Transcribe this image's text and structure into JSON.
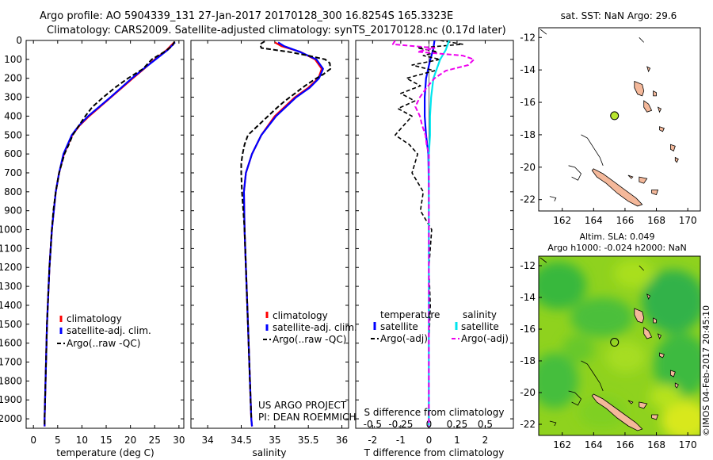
{
  "header": {
    "line1": "Argo profile: AO 5904339_131 27-Jan-2017 20170128_300 16.8254S 165.3323E",
    "line2": "Climatology: CARS2009. Satellite-adjusted climatology: synTS_20170128.nc (0.17d later)"
  },
  "colors": {
    "climatology": "#ff0000",
    "satellite": "#0000ff",
    "argo": "#000000",
    "satellite_s": "#00e5ee",
    "argo_s": "#ee00ee",
    "land": "#f4b89a",
    "float_marker": "#b8e62e"
  },
  "depth_axis": {
    "ticks": [
      0,
      100,
      200,
      300,
      400,
      500,
      600,
      700,
      800,
      900,
      1000,
      1100,
      1200,
      1300,
      1400,
      1500,
      1600,
      1700,
      1800,
      1900,
      2000
    ],
    "ylim": [
      2050,
      0
    ]
  },
  "chart_data": [
    {
      "type": "line",
      "id": "temperature",
      "xlabel": "temperature (deg C)",
      "xlim": [
        -1.5,
        31
      ],
      "xticks": [
        0,
        5,
        10,
        15,
        20,
        25,
        30
      ],
      "legend": [
        "climatology",
        "satellite-adj. clim.",
        "Argo(..raw -QC)"
      ],
      "series": [
        {
          "name": "climatology",
          "depth": [
            10,
            50,
            100,
            150,
            200,
            300,
            400,
            450,
            500,
            600,
            700,
            800,
            1000,
            1200,
            1500,
            1800,
            2000,
            2040
          ],
          "values": [
            29.0,
            27.5,
            25.0,
            22.8,
            20.5,
            16.0,
            11.5,
            9.5,
            8.0,
            6.3,
            5.3,
            4.6,
            3.8,
            3.3,
            2.8,
            2.5,
            2.3,
            2.3
          ]
        },
        {
          "name": "satellite-adj. clim.",
          "depth": [
            10,
            50,
            100,
            150,
            200,
            300,
            400,
            450,
            500,
            600,
            700,
            800,
            1000,
            1200,
            1500,
            1800,
            2000,
            2040
          ],
          "values": [
            29.2,
            27.7,
            25.2,
            22.7,
            20.3,
            15.9,
            11.3,
            9.4,
            7.9,
            6.2,
            5.3,
            4.6,
            3.8,
            3.3,
            2.8,
            2.5,
            2.3,
            2.3
          ]
        },
        {
          "name": "Argo(..raw -QC)",
          "depth": [
            5,
            30,
            60,
            100,
            150,
            200,
            250,
            300,
            350,
            400,
            450,
            500,
            550,
            600,
            700,
            800,
            900,
            1000,
            1200,
            1500,
            1800,
            2000,
            2040
          ],
          "values": [
            29.1,
            28.6,
            27.0,
            24.4,
            22.6,
            19.5,
            16.8,
            14.4,
            12.2,
            10.7,
            9.4,
            8.1,
            7.3,
            6.4,
            5.3,
            4.6,
            4.1,
            3.8,
            3.3,
            2.8,
            2.5,
            2.3,
            2.3
          ]
        }
      ]
    },
    {
      "type": "line",
      "id": "salinity",
      "xlabel": "salinity",
      "xlim": [
        33.75,
        36.1
      ],
      "xticks": [
        34,
        34.5,
        35,
        35.5,
        36
      ],
      "legend": [
        "climatology",
        "satellite-adj. clim.",
        "Argo(..raw -QC)"
      ],
      "series": [
        {
          "name": "climatology",
          "depth": [
            10,
            30,
            60,
            100,
            150,
            200,
            250,
            300,
            400,
            500,
            600,
            700,
            800,
            1000,
            1200,
            1500,
            1800,
            2000,
            2040
          ],
          "values": [
            35.0,
            35.1,
            35.38,
            35.6,
            35.7,
            35.65,
            35.5,
            35.3,
            35.0,
            34.8,
            34.66,
            34.57,
            34.54,
            34.55,
            34.57,
            34.6,
            34.63,
            34.65,
            34.66
          ]
        },
        {
          "name": "satellite-adj. clim.",
          "depth": [
            10,
            30,
            60,
            100,
            150,
            200,
            250,
            300,
            400,
            500,
            600,
            700,
            800,
            1000,
            1200,
            1500,
            1800,
            2000,
            2040
          ],
          "values": [
            35.05,
            35.14,
            35.37,
            35.62,
            35.72,
            35.66,
            35.52,
            35.32,
            35.02,
            34.8,
            34.66,
            34.57,
            34.54,
            34.55,
            34.57,
            34.6,
            34.63,
            34.65,
            34.66
          ]
        },
        {
          "name": "Argo(..raw -QC)",
          "depth": [
            5,
            20,
            40,
            60,
            80,
            100,
            120,
            150,
            180,
            200,
            240,
            280,
            320,
            360,
            400,
            450,
            500,
            550,
            600,
            650,
            700,
            800,
            900,
            1000,
            1200,
            1500,
            1800,
            2000
          ],
          "values": [
            34.85,
            34.78,
            34.8,
            35.2,
            35.5,
            35.75,
            35.82,
            35.83,
            35.72,
            35.62,
            35.45,
            35.3,
            35.15,
            35.02,
            34.9,
            34.75,
            34.6,
            34.55,
            34.52,
            34.5,
            34.5,
            34.51,
            34.53,
            34.55,
            34.57,
            34.6,
            34.63,
            34.65
          ]
        }
      ]
    },
    {
      "type": "line",
      "id": "difference",
      "xlabel": "T difference from climatology",
      "xlabel2": "S difference from climatology",
      "xlim": [
        -2.6,
        3.0
      ],
      "xticks": [
        -2,
        -1,
        0,
        1,
        2
      ],
      "s_ticks": [
        -0.5,
        -0.25,
        0,
        0.25,
        0.5
      ],
      "legend_title_t": "temperature",
      "legend_title_s": "salinity",
      "legend": [
        "satellite",
        "Argo(-adj)",
        "satellite",
        "Argo(-adj)"
      ],
      "series": [
        {
          "name": "satellite (T)",
          "depth": [
            0,
            50,
            100,
            200,
            300,
            400,
            500,
            600,
            800,
            1000,
            1500,
            2040
          ],
          "values": [
            0.2,
            0.15,
            0.05,
            -0.1,
            -0.15,
            -0.15,
            -0.1,
            -0.02,
            0,
            0,
            0,
            0
          ]
        },
        {
          "name": "Argo(-adj) (T)",
          "depth": [
            0,
            20,
            40,
            60,
            80,
            100,
            130,
            160,
            200,
            240,
            280,
            320,
            360,
            400,
            450,
            500,
            550,
            600,
            700,
            800,
            900,
            1000,
            1200,
            1400,
            1600,
            1800,
            2040
          ],
          "values": [
            0.4,
            1.2,
            -0.4,
            0.3,
            -0.2,
            0.4,
            -0.6,
            0.2,
            -0.8,
            -0.3,
            -1.0,
            -0.5,
            -1.1,
            -0.6,
            -0.9,
            -1.2,
            -0.7,
            -0.4,
            -0.6,
            -0.2,
            -0.3,
            0.1,
            0,
            0.05,
            0,
            0,
            0
          ]
        },
        {
          "name": "satellite (S)",
          "depth": [
            0,
            50,
            100,
            200,
            300,
            400,
            500,
            600,
            800,
            1000,
            1500,
            2040
          ],
          "values": [
            0.18,
            0.15,
            0.1,
            0.04,
            0.02,
            0.01,
            0.01,
            0.0,
            0.0,
            0.0,
            0.0,
            0.0
          ]
        },
        {
          "name": "Argo(-adj) (S)",
          "depth": [
            0,
            20,
            40,
            60,
            80,
            100,
            130,
            160,
            200,
            250,
            300,
            350,
            400,
            450,
            500,
            550,
            600,
            700,
            800,
            1000,
            1500,
            2040
          ],
          "values": [
            -0.3,
            -0.32,
            0.05,
            -0.1,
            0.3,
            0.4,
            0.35,
            0.15,
            0.05,
            -0.02,
            -0.08,
            -0.12,
            -0.08,
            -0.06,
            -0.03,
            -0.02,
            0.0,
            0.0,
            0.0,
            0.0,
            0.0,
            0.0
          ]
        }
      ]
    },
    {
      "type": "scatter",
      "id": "sst_map",
      "title": "sat. SST: NaN Argo: 29.6",
      "xlim": [
        160.5,
        170.8
      ],
      "ylim": [
        -22.7,
        -11.4
      ],
      "xticks": [
        162,
        164,
        166,
        168,
        170
      ],
      "yticks": [
        -12,
        -14,
        -16,
        -18,
        -20,
        -22
      ],
      "float_position": {
        "lon": 165.3323,
        "lat": -16.8254
      }
    },
    {
      "type": "heatmap",
      "id": "sla_map",
      "title1": "Altim. SLA: 0.049",
      "title2": "Argo h1000: -0.024 h2000: NaN",
      "xlim": [
        160.5,
        170.8
      ],
      "ylim": [
        -22.7,
        -11.4
      ],
      "xticks": [
        162,
        164,
        166,
        168,
        170
      ],
      "yticks": [
        -12,
        -14,
        -16,
        -18,
        -20,
        -22
      ],
      "float_position": {
        "lon": 165.3323,
        "lat": -16.8254
      }
    }
  ],
  "credits": {
    "project": "US ARGO PROJECT",
    "pi": "PI: DEAN ROEMMICH",
    "imos": "©IMOS 04-Feb-2017 20:45:10"
  }
}
